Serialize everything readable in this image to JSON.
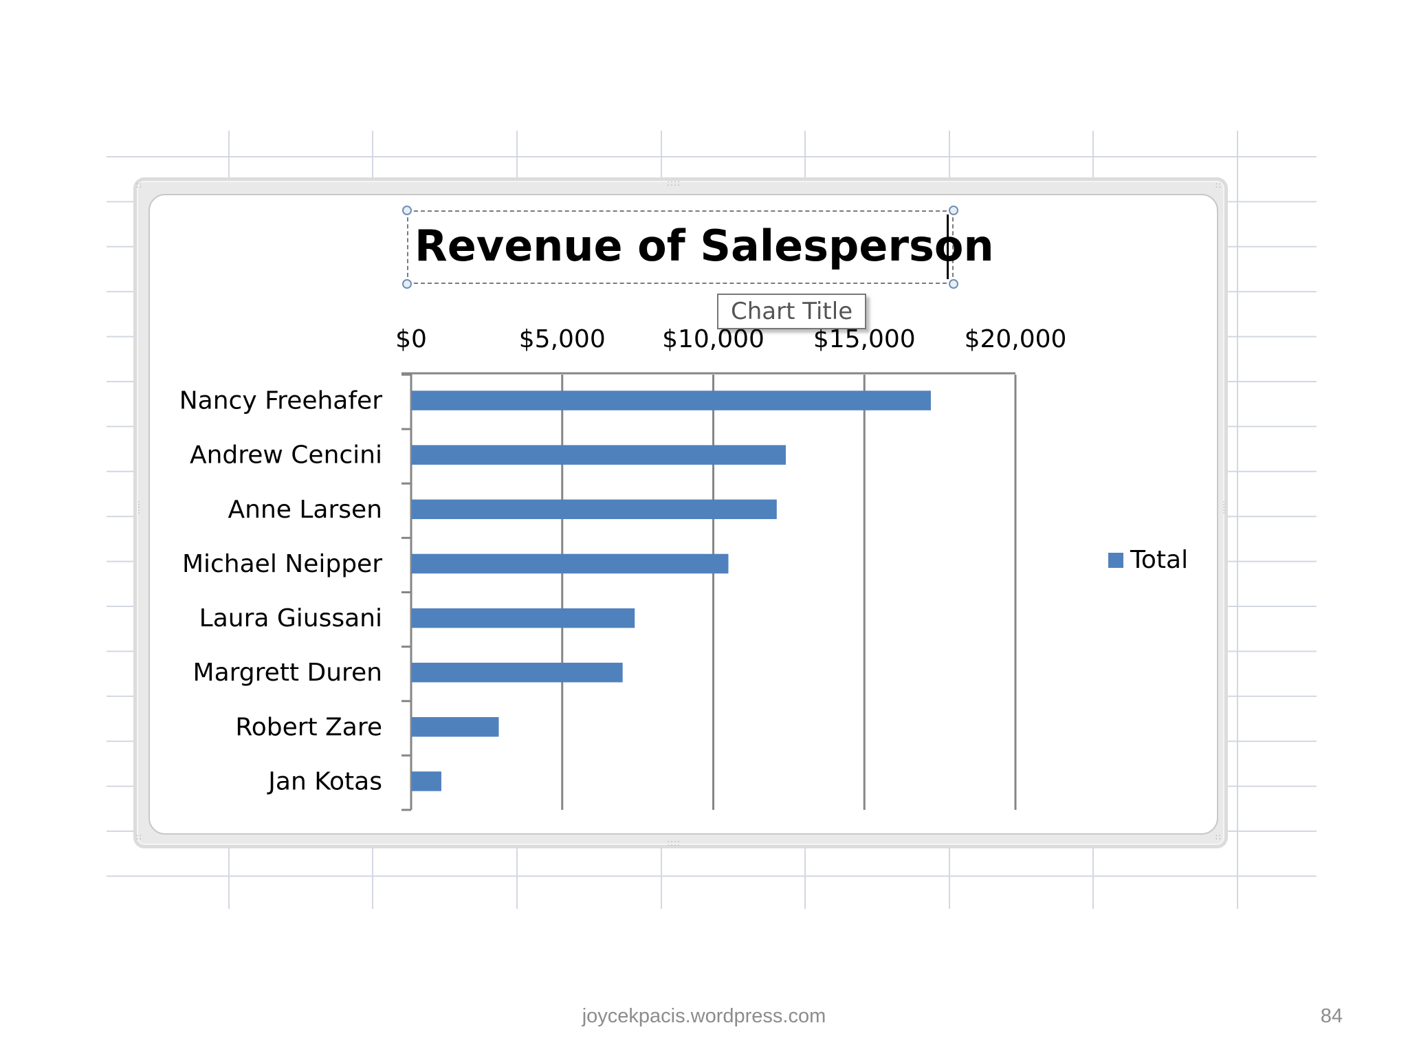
{
  "chart_data": {
    "type": "bar",
    "orientation": "horizontal",
    "title": "Revenue of Salesperson",
    "categories": [
      "Nancy Freehafer",
      "Andrew Cencini",
      "Anne Larsen",
      "Michael Neipper",
      "Laura Giussani",
      "Margrett Duren",
      "Robert Zare",
      "Jan Kotas"
    ],
    "series": [
      {
        "name": "Total",
        "values": [
          17200,
          12400,
          12100,
          10500,
          7400,
          7000,
          2900,
          1000
        ]
      }
    ],
    "xlim": [
      0,
      20000
    ],
    "x_ticks": [
      0,
      5000,
      10000,
      15000,
      20000
    ],
    "x_tick_labels": [
      "$0",
      "$5,000",
      "$10,000",
      "$15,000",
      "$20,000"
    ],
    "x_axis_position": "top",
    "grid": true,
    "legend_position": "right",
    "bar_color": "#4f81bd"
  },
  "tooltip": {
    "text": "Chart Title"
  },
  "legend": {
    "label": "Total"
  },
  "footer": {
    "url": "joycekpacis.wordpress.com",
    "page_number": "84"
  }
}
